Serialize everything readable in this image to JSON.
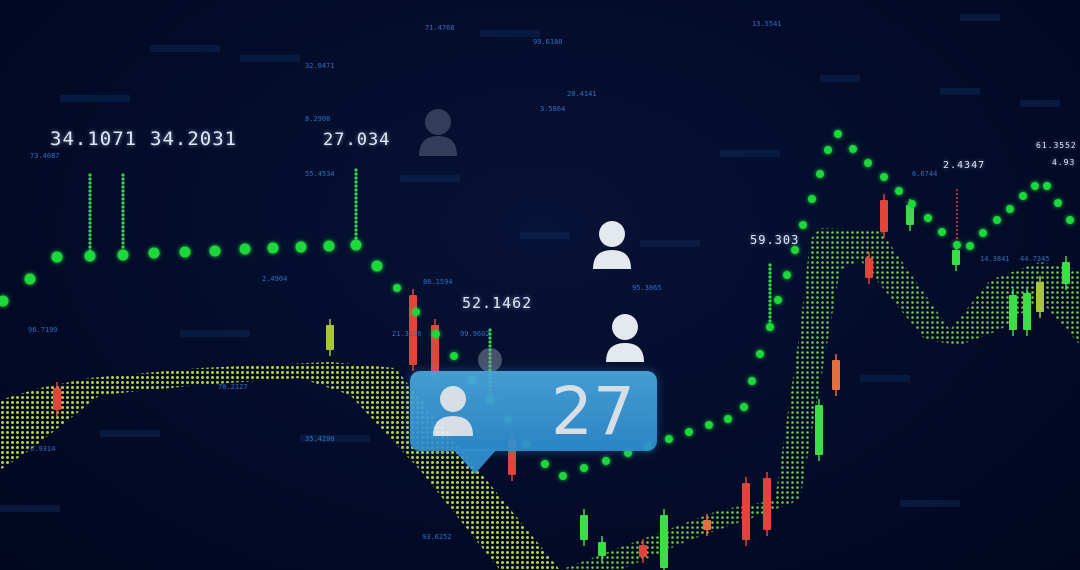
{
  "labels": {
    "a": "34.1071",
    "b": "34.2031",
    "c": "27.034",
    "d": "52.1462",
    "e": "59.303",
    "f": "2.4347",
    "g": "61.3552",
    "h": "4.93"
  },
  "small_labels": [
    "73.4087",
    "96.7199",
    "32.0471",
    "71.4768",
    "2.4904",
    "86.1594",
    "21.3236",
    "99.9602",
    "70.2127",
    "35.4200",
    "93.6252",
    "55.4534",
    "8.2908",
    "20.4141",
    "99.6180",
    "13.5541",
    "6.6744",
    "14.3841",
    "44.7345",
    "6.9314",
    "3.5864",
    "95.3865"
  ],
  "badge": {
    "count": "27",
    "icon": "user-icon",
    "color": "#3a9ad8"
  },
  "colors": {
    "background": "#020a24",
    "dots": "#1fd83a",
    "band_yellow": "#c9e43a",
    "band_green": "#5fd83a",
    "candle_up": "#3fdc4a",
    "candle_down": "#e0453c"
  }
}
